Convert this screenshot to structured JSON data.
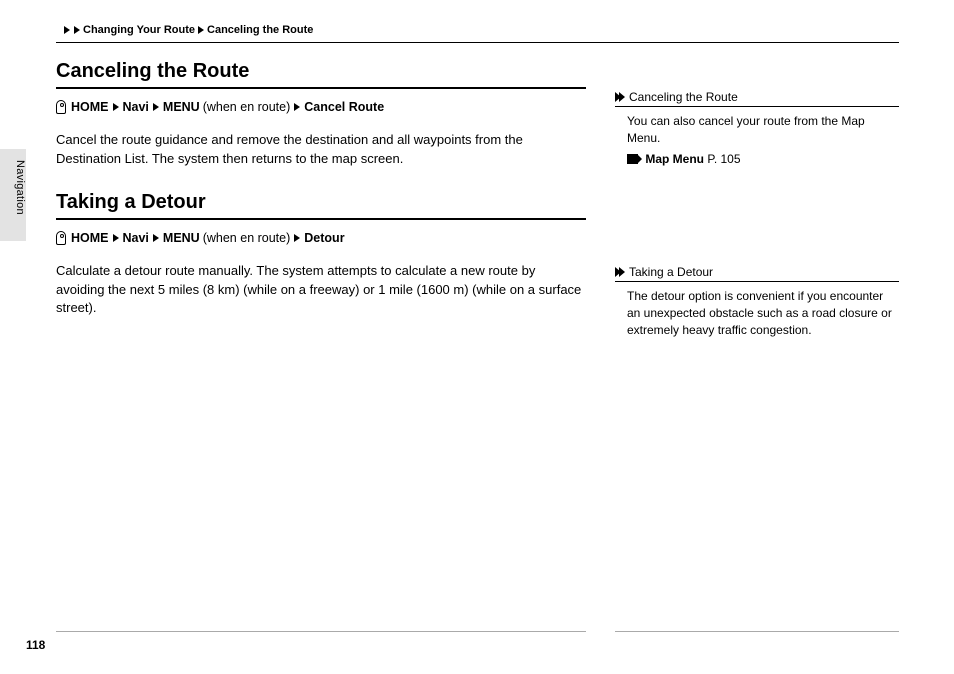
{
  "breadcrumb": {
    "level1": "Changing Your Route",
    "level2": "Canceling the Route"
  },
  "side_tab": "Navigation",
  "sections": [
    {
      "title": "Canceling the Route",
      "path": {
        "home": "HOME",
        "step2": "Navi",
        "step3": "MENU",
        "paren": "(when en route)",
        "step4": "Cancel Route"
      },
      "body": "Cancel the route guidance and remove the destination and all waypoints from the Destination List. The system then returns to the map screen."
    },
    {
      "title": "Taking a Detour",
      "path": {
        "home": "HOME",
        "step2": "Navi",
        "step3": "MENU",
        "paren": "(when en route)",
        "step4": "Detour"
      },
      "body": "Calculate a detour route manually. The system attempts to calculate a new route by avoiding the next 5 miles (8 km) (while on a freeway) or 1 mile (1600 m) (while on a surface street)."
    }
  ],
  "side_notes": [
    {
      "head": "Canceling the Route",
      "body": "You can also cancel your route from the Map Menu.",
      "ref_label": "Map Menu",
      "ref_page": "P. 105"
    },
    {
      "head": "Taking a Detour",
      "body": "The detour option is convenient if you encounter an unexpected obstacle such as a road closure or extremely heavy traffic congestion.",
      "ref_label": "",
      "ref_page": ""
    }
  ],
  "page_number": "118"
}
